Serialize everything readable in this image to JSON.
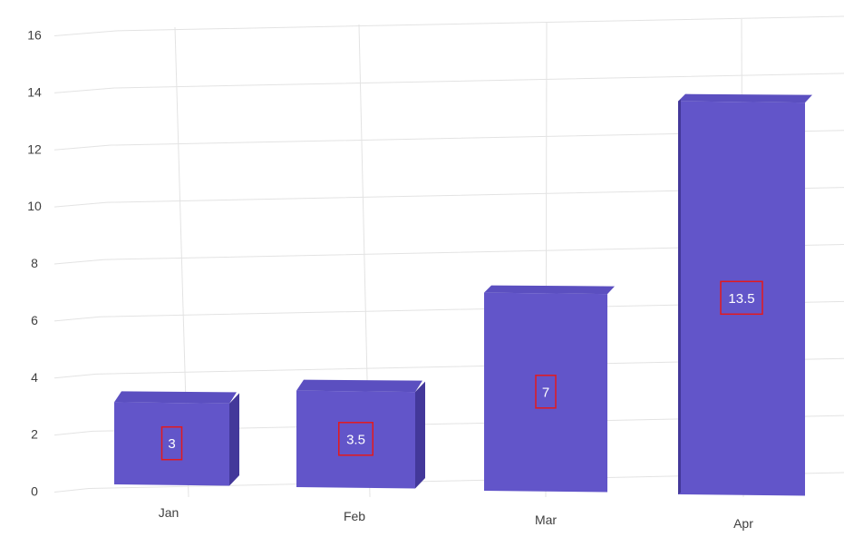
{
  "chart_data": {
    "type": "bar",
    "categories": [
      "Jan",
      "Feb",
      "Mar",
      "Apr"
    ],
    "values": [
      3,
      3.5,
      7,
      13.5
    ],
    "data_labels": [
      "3",
      "3.5",
      "7",
      "13.5"
    ],
    "y_ticks": [
      "0",
      "2",
      "4",
      "6",
      "8",
      "10",
      "12",
      "14",
      "16"
    ],
    "ylim": [
      0,
      16
    ],
    "title": "",
    "xlabel": "",
    "ylabel": "",
    "grid": true,
    "style": "3d",
    "colors": {
      "bar_front": "#6255c9",
      "bar_top": "#5b4fc0",
      "bar_side": "#43389a",
      "grid": "#e3e3e3",
      "label_box": "#e4191c",
      "label_text": "#ffffff",
      "tick_text": "#3f3f3f"
    }
  }
}
